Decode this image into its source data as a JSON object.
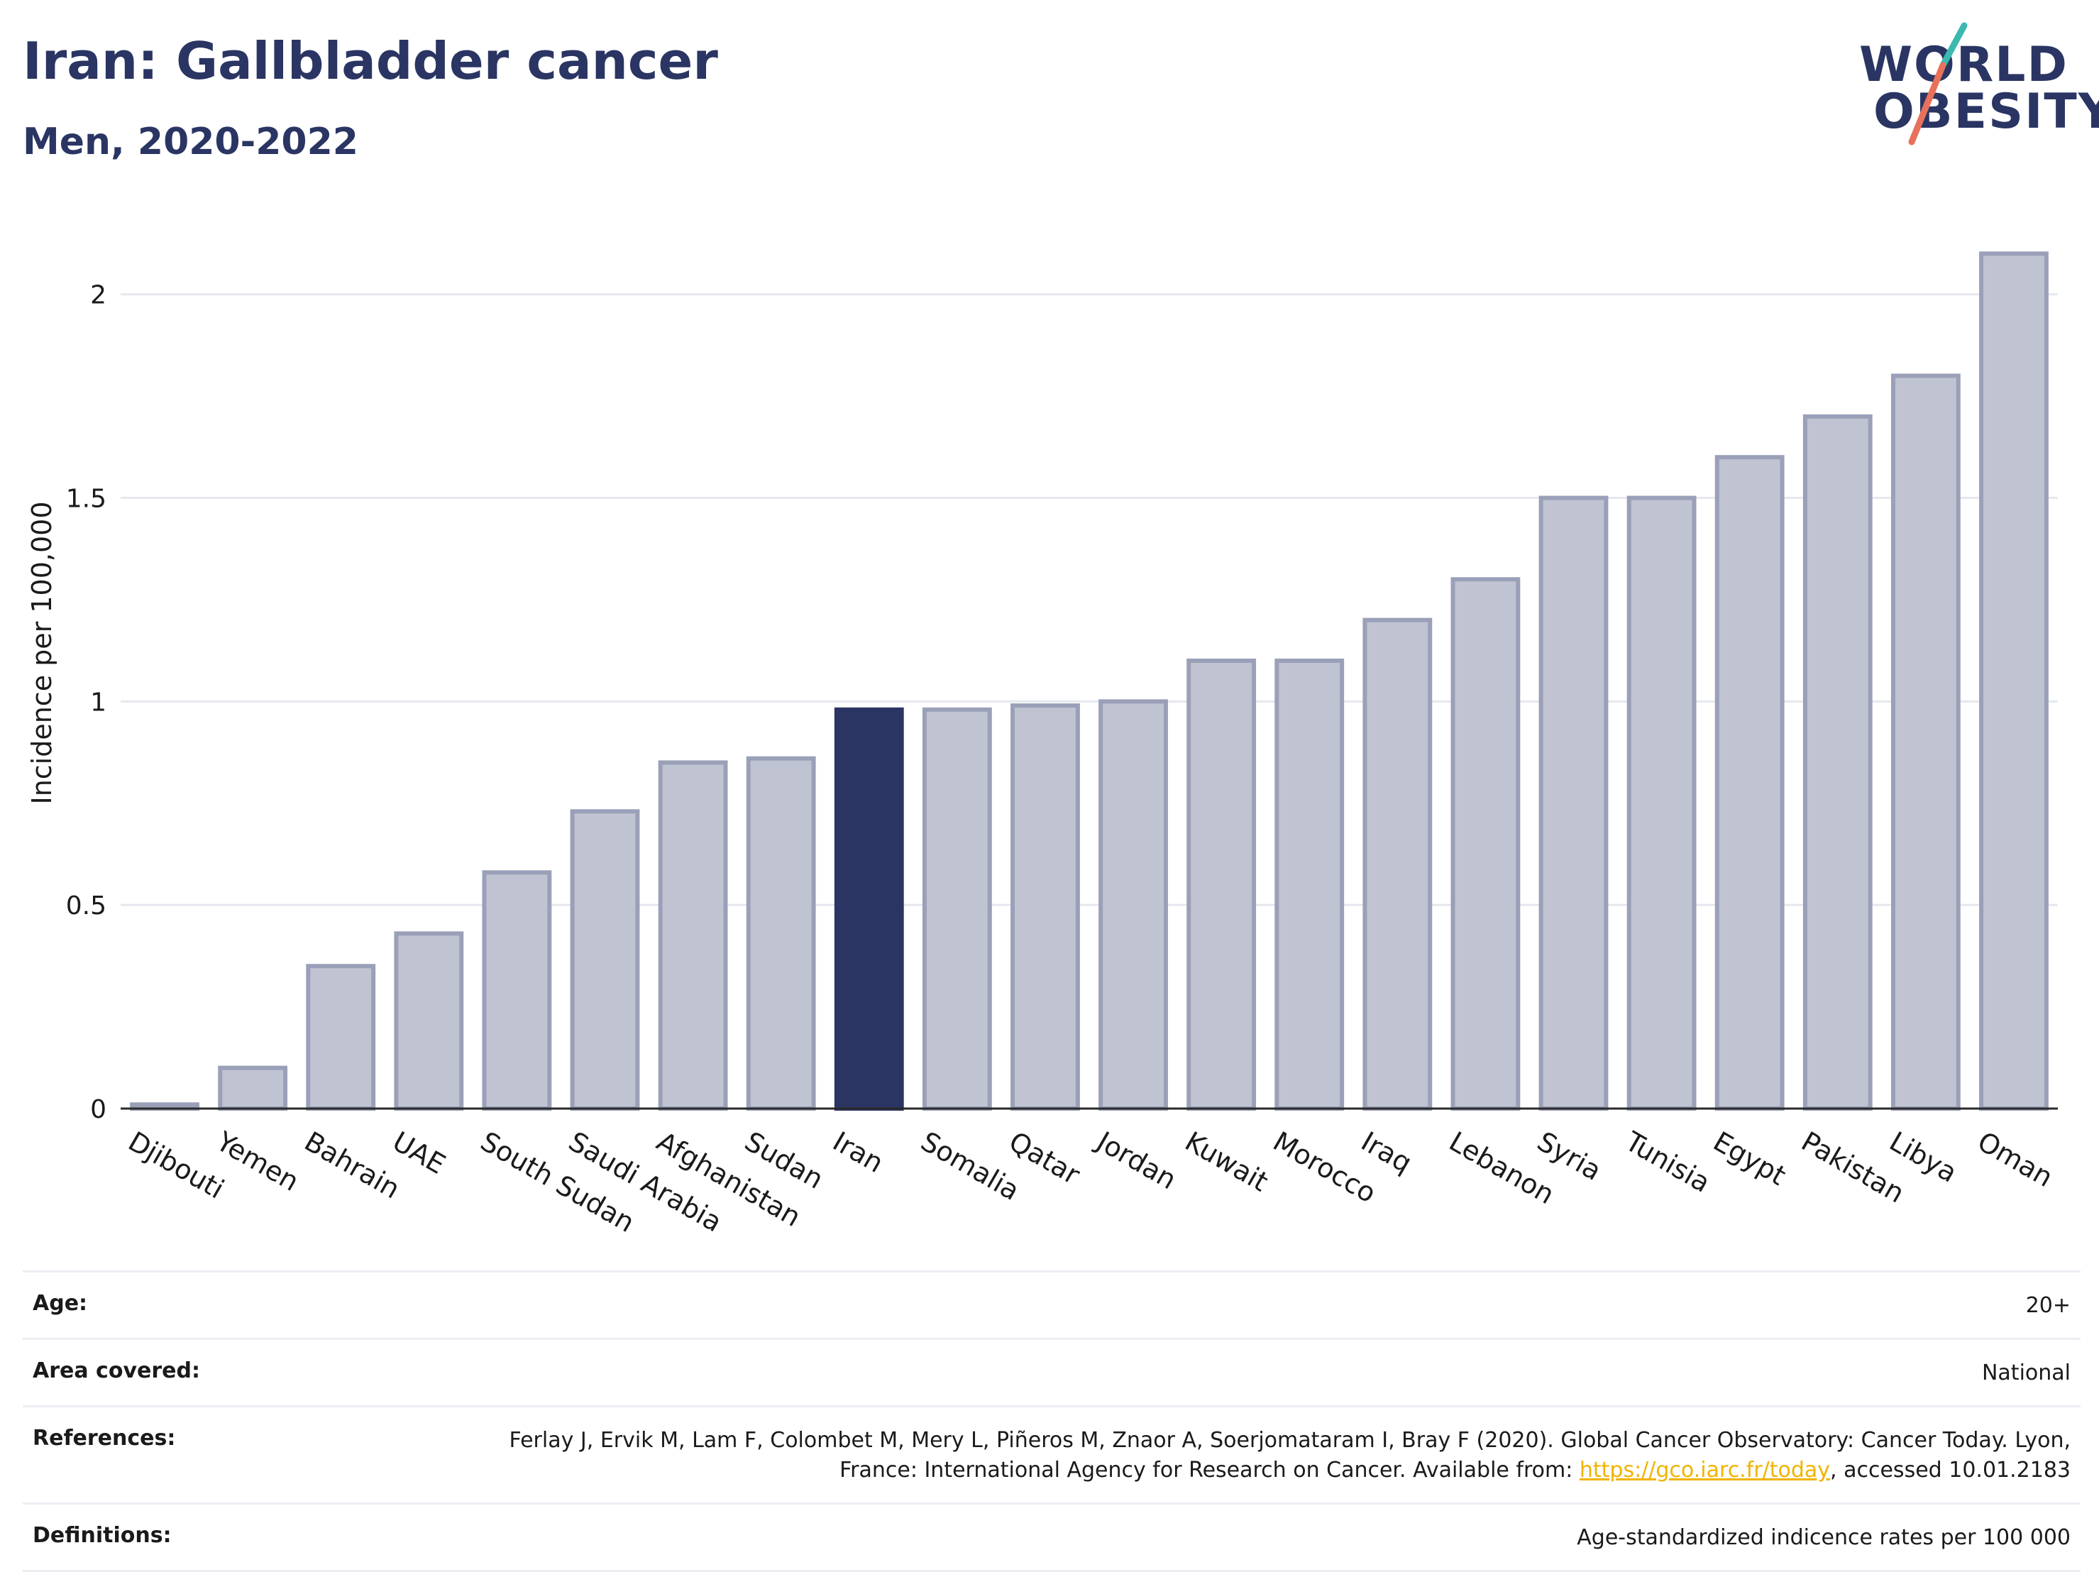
{
  "header": {
    "title": "Iran: Gallbladder cancer",
    "subtitle": "Men, 2020-2022"
  },
  "logo": {
    "line1": "WORLD",
    "line2": "OBESITY"
  },
  "chart_data": {
    "type": "bar",
    "ylabel": "Incidence per 100,000",
    "xlabel": "",
    "ylim": [
      0,
      2.2
    ],
    "yticks": [
      0,
      0.5,
      1,
      1.5,
      2
    ],
    "ytick_labels": [
      "0",
      "0.5",
      "1",
      "1.5",
      "2"
    ],
    "grid": true,
    "highlight": "Iran",
    "categories": [
      "Djibouti",
      "Yemen",
      "Bahrain",
      "UAE",
      "South Sudan",
      "Saudi Arabia",
      "Afghanistan",
      "Sudan",
      "Iran",
      "Somalia",
      "Qatar",
      "Jordan",
      "Kuwait",
      "Morocco",
      "Iraq",
      "Lebanon",
      "Syria",
      "Tunisia",
      "Egypt",
      "Pakistan",
      "Libya",
      "Oman"
    ],
    "values": [
      0.01,
      0.1,
      0.35,
      0.43,
      0.58,
      0.73,
      0.85,
      0.86,
      0.98,
      0.98,
      0.99,
      1.0,
      1.1,
      1.1,
      1.2,
      1.3,
      1.5,
      1.5,
      1.6,
      1.7,
      1.8,
      2.1
    ],
    "colors": {
      "bar": "#c0c3d1",
      "bar_border": "#9aa0b8",
      "highlight": "#2a3563",
      "axis": "#2a2a2a",
      "grid": "#e6e8ef"
    }
  },
  "meta": {
    "age": {
      "label": "Age:",
      "value": "20+"
    },
    "area": {
      "label": "Area covered:",
      "value": "National"
    },
    "references": {
      "label": "References:",
      "text_before": "Ferlay J, Ervik M, Lam F, Colombet M, Mery L, Piñeros M, Znaor A, Soerjomataram I, Bray F (2020). Global Cancer Observatory: Cancer Today. Lyon, France: International Agency for Research on Cancer. Available from: ",
      "link": "https://gco.iarc.fr/today",
      "text_after": ", accessed 10.01.2183"
    },
    "definitions": {
      "label": "Definitions:",
      "value": "Age-standardized indicence rates per 100 000"
    }
  }
}
